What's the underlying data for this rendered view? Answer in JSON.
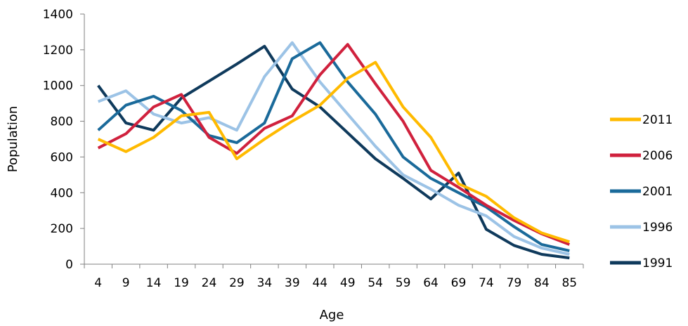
{
  "chart_data": {
    "type": "line",
    "title": "",
    "xlabel": "Age",
    "ylabel": "Population",
    "categories": [
      "4",
      "9",
      "14",
      "19",
      "24",
      "29",
      "34",
      "39",
      "44",
      "49",
      "54",
      "59",
      "64",
      "69",
      "74",
      "79",
      "84",
      "85"
    ],
    "ylim": [
      0,
      1400
    ],
    "yticks": [
      0,
      200,
      400,
      600,
      800,
      1000,
      1200,
      1400
    ],
    "grid": false,
    "legend_position": "right",
    "series": [
      {
        "name": "1991",
        "color": "#0f3a5c",
        "values": [
          1000,
          790,
          750,
          930,
          1025,
          1120,
          1220,
          980,
          880,
          735,
          590,
          480,
          365,
          510,
          195,
          105,
          55,
          35
        ]
      },
      {
        "name": "1996",
        "color": "#9cc3e6",
        "values": [
          910,
          970,
          840,
          790,
          820,
          750,
          1050,
          1240,
          1020,
          840,
          660,
          500,
          420,
          330,
          270,
          155,
          90,
          55
        ]
      },
      {
        "name": "2001",
        "color": "#1a6a9a",
        "values": [
          750,
          890,
          940,
          860,
          720,
          680,
          790,
          1150,
          1240,
          1020,
          840,
          600,
          480,
          400,
          320,
          210,
          110,
          75
        ]
      },
      {
        "name": "2006",
        "color": "#d0213d",
        "values": [
          650,
          730,
          880,
          950,
          710,
          620,
          760,
          830,
          1060,
          1230,
          1010,
          800,
          525,
          430,
          330,
          245,
          170,
          110
        ]
      },
      {
        "name": "2011",
        "color": "#ffba00",
        "values": [
          700,
          630,
          710,
          830,
          850,
          590,
          700,
          800,
          890,
          1040,
          1130,
          880,
          710,
          450,
          380,
          260,
          175,
          125
        ]
      }
    ],
    "legend_order": [
      "2011",
      "2006",
      "2001",
      "1996",
      "1991"
    ]
  }
}
